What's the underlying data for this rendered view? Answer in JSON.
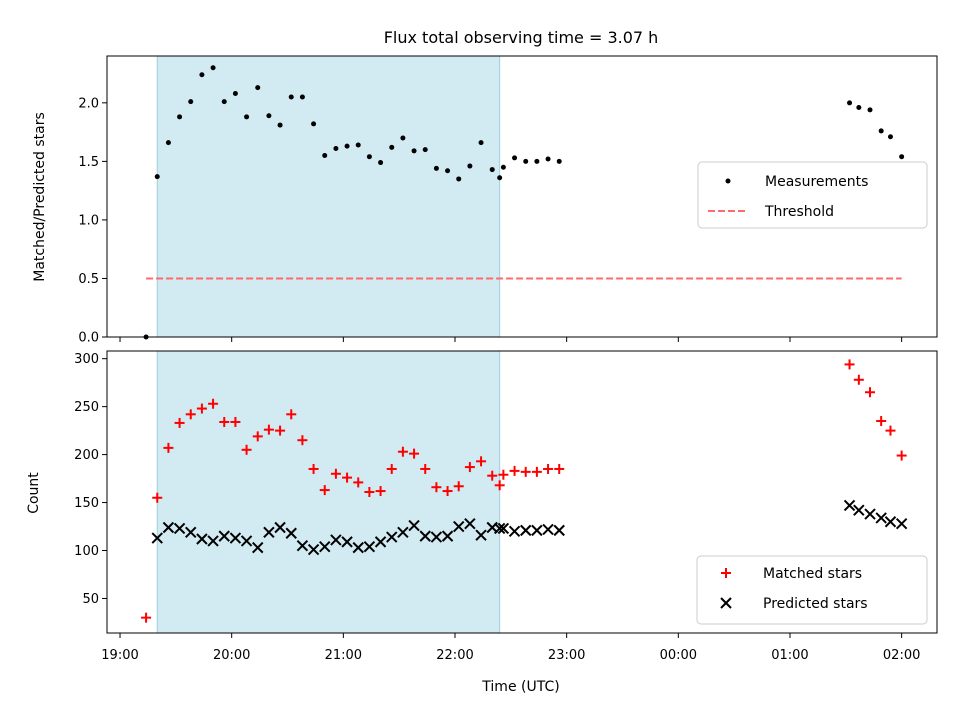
{
  "figure": {
    "title": "Flux total observing time = 3.07 h",
    "xlabel": "Time (UTC)",
    "x_ticks": [
      "19:00",
      "20:00",
      "21:00",
      "22:00",
      "23:00",
      "00:00",
      "01:00",
      "02:00"
    ],
    "shaded_interval": [
      "19:20",
      "22:24"
    ],
    "shade_color": "#add8e6"
  },
  "chart_data": [
    {
      "type": "scatter",
      "ylabel": "Matched/Predicted stars",
      "xlim": [
        "18:53",
        "02:19"
      ],
      "ylim": [
        0,
        2.4
      ],
      "y_ticks": [
        "0.0",
        "0.5",
        "1.0",
        "1.5",
        "2.0"
      ],
      "legend_position": "center-right",
      "series": [
        {
          "name": "Measurements",
          "color": "#000000",
          "marker": "dot",
          "points": [
            [
              "19:14",
              0.0
            ],
            [
              "19:20",
              1.37
            ],
            [
              "19:26",
              1.66
            ],
            [
              "19:32",
              1.88
            ],
            [
              "19:38",
              2.01
            ],
            [
              "19:44",
              2.24
            ],
            [
              "19:50",
              2.3
            ],
            [
              "19:56",
              2.01
            ],
            [
              "20:02",
              2.08
            ],
            [
              "20:08",
              1.88
            ],
            [
              "20:14",
              2.13
            ],
            [
              "20:20",
              1.89
            ],
            [
              "20:26",
              1.81
            ],
            [
              "20:32",
              2.05
            ],
            [
              "20:38",
              2.05
            ],
            [
              "20:44",
              1.82
            ],
            [
              "20:50",
              1.55
            ],
            [
              "20:56",
              1.61
            ],
            [
              "21:02",
              1.63
            ],
            [
              "21:08",
              1.64
            ],
            [
              "21:14",
              1.54
            ],
            [
              "21:20",
              1.49
            ],
            [
              "21:26",
              1.62
            ],
            [
              "21:32",
              1.7
            ],
            [
              "21:38",
              1.59
            ],
            [
              "21:44",
              1.6
            ],
            [
              "21:50",
              1.44
            ],
            [
              "21:56",
              1.42
            ],
            [
              "22:02",
              1.35
            ],
            [
              "22:08",
              1.46
            ],
            [
              "22:14",
              1.66
            ],
            [
              "22:20",
              1.43
            ],
            [
              "22:26",
              1.45
            ],
            [
              "22:32",
              1.53
            ],
            [
              "22:38",
              1.5
            ],
            [
              "22:44",
              1.5
            ],
            [
              "22:50",
              1.52
            ],
            [
              "22:56",
              1.5
            ],
            [
              "22:24",
              1.36
            ],
            [
              "01:32",
              2.0
            ],
            [
              "01:37",
              1.96
            ],
            [
              "01:43",
              1.94
            ],
            [
              "01:49",
              1.76
            ],
            [
              "01:54",
              1.71
            ],
            [
              "02:00",
              1.54
            ]
          ]
        },
        {
          "name": "Threshold",
          "color": "#ff6b6b",
          "style": "dashed",
          "line": [
            [
              "19:14",
              0.5
            ],
            [
              "02:00",
              0.5
            ]
          ]
        }
      ]
    },
    {
      "type": "scatter",
      "ylabel": "Count",
      "xlim": [
        "18:53",
        "02:19"
      ],
      "ylim": [
        14,
        308
      ],
      "y_ticks": [
        "50",
        "100",
        "150",
        "200",
        "250",
        "300"
      ],
      "legend_position": "bottom-right",
      "series": [
        {
          "name": "Matched stars",
          "color": "#ff0000",
          "marker": "plus",
          "points": [
            [
              "19:14",
              30
            ],
            [
              "19:20",
              155
            ],
            [
              "19:26",
              207
            ],
            [
              "19:32",
              233
            ],
            [
              "19:38",
              242
            ],
            [
              "19:44",
              248
            ],
            [
              "19:50",
              253
            ],
            [
              "19:56",
              234
            ],
            [
              "20:02",
              234
            ],
            [
              "20:08",
              205
            ],
            [
              "20:14",
              219
            ],
            [
              "20:20",
              226
            ],
            [
              "20:26",
              225
            ],
            [
              "20:32",
              242
            ],
            [
              "20:38",
              215
            ],
            [
              "20:44",
              185
            ],
            [
              "20:50",
              163
            ],
            [
              "20:56",
              180
            ],
            [
              "21:02",
              176
            ],
            [
              "21:08",
              171
            ],
            [
              "21:14",
              161
            ],
            [
              "21:20",
              162
            ],
            [
              "21:26",
              185
            ],
            [
              "21:32",
              203
            ],
            [
              "21:38",
              201
            ],
            [
              "21:44",
              185
            ],
            [
              "21:50",
              166
            ],
            [
              "21:56",
              162
            ],
            [
              "22:02",
              167
            ],
            [
              "22:08",
              187
            ],
            [
              "22:14",
              193
            ],
            [
              "22:20",
              178
            ],
            [
              "22:26",
              179
            ],
            [
              "22:32",
              183
            ],
            [
              "22:38",
              182
            ],
            [
              "22:44",
              182
            ],
            [
              "22:50",
              185
            ],
            [
              "22:56",
              185
            ],
            [
              "22:24",
              168
            ],
            [
              "01:32",
              294
            ],
            [
              "01:37",
              278
            ],
            [
              "01:43",
              265
            ],
            [
              "01:49",
              235
            ],
            [
              "01:54",
              225
            ],
            [
              "02:00",
              199
            ]
          ]
        },
        {
          "name": "Predicted stars",
          "color": "#000000",
          "marker": "x",
          "points": [
            [
              "19:20",
              113
            ],
            [
              "19:26",
              124
            ],
            [
              "19:32",
              123
            ],
            [
              "19:38",
              119
            ],
            [
              "19:44",
              112
            ],
            [
              "19:50",
              110
            ],
            [
              "19:56",
              115
            ],
            [
              "20:02",
              113
            ],
            [
              "20:08",
              110
            ],
            [
              "20:14",
              103
            ],
            [
              "20:20",
              119
            ],
            [
              "20:26",
              124
            ],
            [
              "20:32",
              118
            ],
            [
              "20:38",
              105
            ],
            [
              "20:44",
              101
            ],
            [
              "20:50",
              104
            ],
            [
              "20:56",
              111
            ],
            [
              "21:02",
              109
            ],
            [
              "21:08",
              103
            ],
            [
              "21:14",
              104
            ],
            [
              "21:20",
              109
            ],
            [
              "21:26",
              114
            ],
            [
              "21:32",
              119
            ],
            [
              "21:38",
              126
            ],
            [
              "21:44",
              115
            ],
            [
              "21:50",
              114
            ],
            [
              "21:56",
              115
            ],
            [
              "22:02",
              125
            ],
            [
              "22:08",
              128
            ],
            [
              "22:14",
              116
            ],
            [
              "22:20",
              124
            ],
            [
              "22:26",
              123
            ],
            [
              "22:32",
              120
            ],
            [
              "22:38",
              121
            ],
            [
              "22:44",
              121
            ],
            [
              "22:50",
              122
            ],
            [
              "22:56",
              121
            ],
            [
              "22:24",
              123
            ],
            [
              "01:32",
              147
            ],
            [
              "01:37",
              142
            ],
            [
              "01:43",
              138
            ],
            [
              "01:49",
              134
            ],
            [
              "01:54",
              130
            ],
            [
              "02:00",
              128
            ]
          ]
        }
      ]
    }
  ]
}
